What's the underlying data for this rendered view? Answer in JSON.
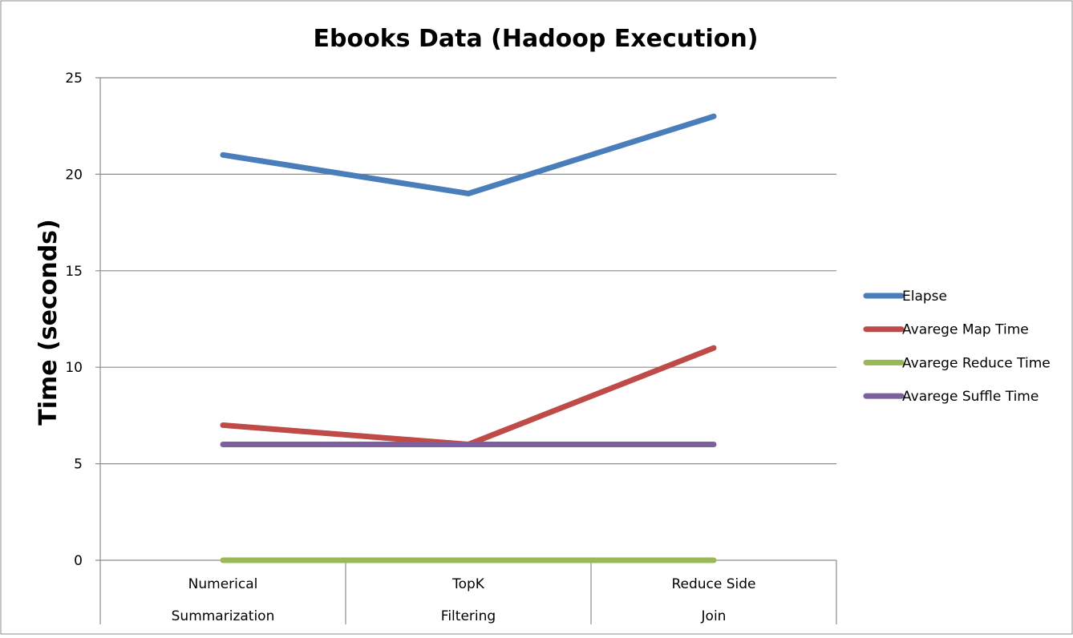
{
  "chart_data": {
    "type": "line",
    "title": "Ebooks Data (Hadoop Execution)",
    "xlabel": "",
    "ylabel": "Time (seconds)",
    "ylim": [
      0,
      25
    ],
    "yticks": [
      0,
      5,
      10,
      15,
      20,
      25
    ],
    "grid": true,
    "legend": "right",
    "categories": [
      [
        "Numerical",
        "Summarization"
      ],
      [
        "TopK",
        "Filtering"
      ],
      [
        "Reduce Side",
        "Join"
      ]
    ],
    "series": [
      {
        "name": "Elapse",
        "color": "#4a7ebb",
        "values": [
          21,
          19,
          23
        ]
      },
      {
        "name": "Avarege Map Time",
        "color": "#be4b48",
        "values": [
          7,
          6,
          11
        ]
      },
      {
        "name": "Avarege Reduce Time",
        "color": "#98b954",
        "values": [
          0,
          0,
          0
        ]
      },
      {
        "name": "Avarege Suffle Time",
        "color": "#7d60a0",
        "values": [
          6,
          6,
          6
        ]
      }
    ]
  }
}
